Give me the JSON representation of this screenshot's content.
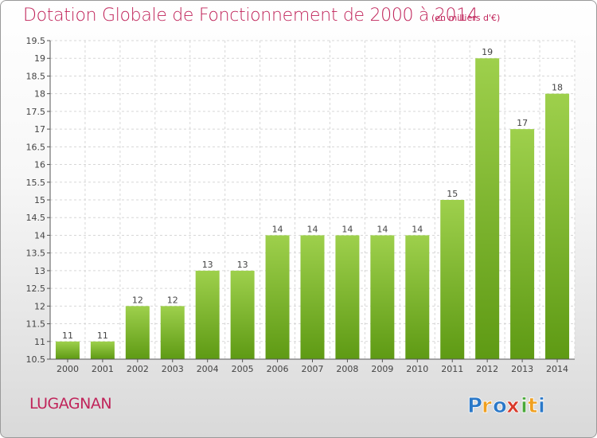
{
  "header": {
    "title": "Dotation Globale de Fonctionnement de 2000 à 2014",
    "subtitle": "(en milliers d'€)"
  },
  "footer": {
    "commune": "LUGAGNAN",
    "logo_text": "Proxiti",
    "logo_letters": [
      "P",
      "r",
      "o",
      "x",
      "i",
      "t",
      "i"
    ],
    "logo_colors": [
      "#2a78c8",
      "#f0a020",
      "#2a78c8",
      "#d93a2b",
      "#4aa83a",
      "#f0a020",
      "#2a78c8"
    ]
  },
  "colors": {
    "bar_top": "#9ed04c",
    "bar_bottom": "#5e9a14",
    "accent": "#c0245a",
    "grid": "#d7d7d7"
  },
  "chart_data": {
    "type": "bar",
    "title": "Dotation Globale de Fonctionnement de 2000 à 2014",
    "subtitle": "(en milliers d'€)",
    "categories": [
      "2000",
      "2001",
      "2002",
      "2003",
      "2004",
      "2005",
      "2006",
      "2007",
      "2008",
      "2009",
      "2010",
      "2011",
      "2012",
      "2013",
      "2014"
    ],
    "values": [
      11,
      11,
      12,
      12,
      13,
      13,
      14,
      14,
      14,
      14,
      14,
      15,
      19,
      17,
      18
    ],
    "ylim": [
      10.5,
      19.5
    ],
    "yticks": [
      "10.5",
      "11",
      "11.5",
      "12",
      "12.5",
      "13",
      "13.5",
      "14",
      "14.5",
      "15",
      "15.5",
      "16",
      "16.5",
      "17",
      "17.5",
      "18",
      "18.5",
      "19",
      "19.5"
    ],
    "grid": true,
    "xlabel": "",
    "ylabel": ""
  }
}
